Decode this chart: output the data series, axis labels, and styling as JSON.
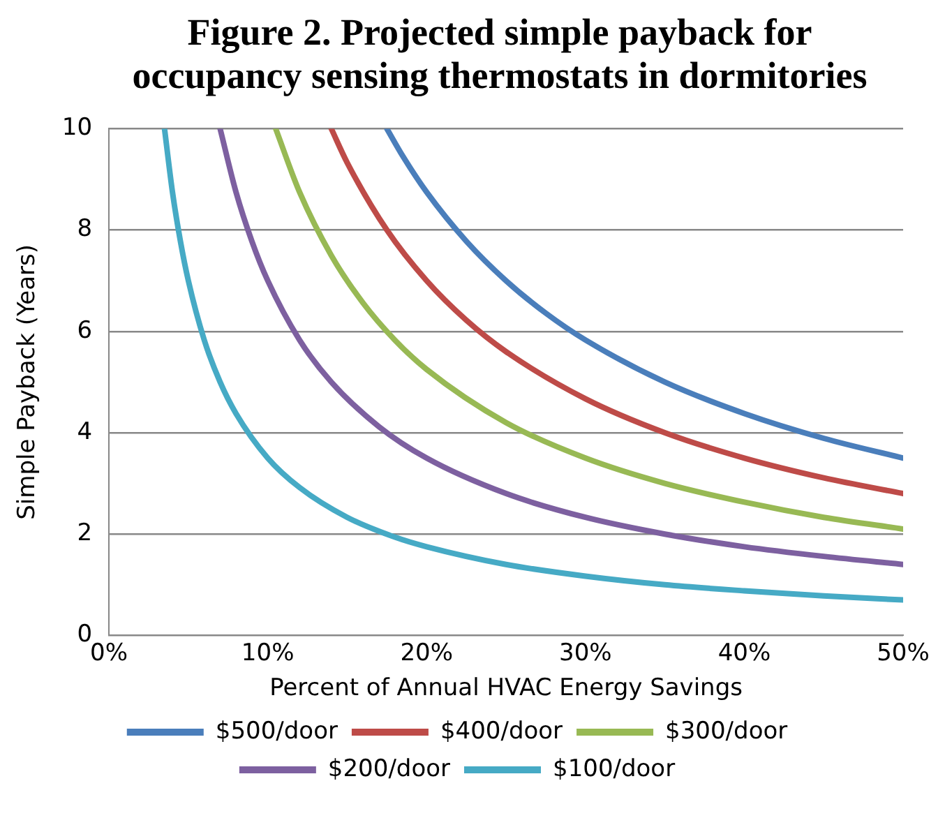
{
  "chart_data": {
    "type": "line",
    "title": "Figure 2. Projected simple payback for occupancy sensing thermostats in dormitories",
    "xlabel": "Percent of Annual HVAC Energy Savings",
    "ylabel": "Simple Payback (Years)",
    "xlim": [
      0,
      50
    ],
    "xticks": [
      {
        "value": 0,
        "label": "0%"
      },
      {
        "value": 10,
        "label": "10%"
      },
      {
        "value": 20,
        "label": "20%"
      },
      {
        "value": 30,
        "label": "30%"
      },
      {
        "value": 40,
        "label": "40%"
      },
      {
        "value": 50,
        "label": "50%"
      }
    ],
    "ylim": [
      0,
      10
    ],
    "yticks": [
      0,
      2,
      4,
      6,
      8,
      10
    ],
    "grid": "y",
    "legend": "bottom",
    "marker": "none",
    "line_style": "solid",
    "series": [
      {
        "name": "$500/door",
        "color": "#4a7ebb",
        "x": [
          17.5,
          18.5,
          20,
          22.5,
          25,
          27.5,
          30,
          35,
          40,
          45,
          50
        ],
        "values": [
          10,
          9.46,
          8.75,
          7.78,
          7.0,
          6.36,
          5.83,
          5.0,
          4.38,
          3.89,
          3.5
        ]
      },
      {
        "name": "$400/door",
        "color": "#be4b48",
        "x": [
          14,
          15,
          17.5,
          20,
          22.5,
          25,
          30,
          35,
          40,
          45,
          50
        ],
        "values": [
          10,
          9.33,
          8.0,
          7.0,
          6.22,
          5.6,
          4.67,
          4.0,
          3.5,
          3.11,
          2.8
        ]
      },
      {
        "name": "$300/door",
        "color": "#98b954",
        "x": [
          10.5,
          12,
          14,
          16,
          18,
          20,
          25,
          30,
          35,
          40,
          45,
          50
        ],
        "values": [
          10,
          8.75,
          7.5,
          6.56,
          5.83,
          5.25,
          4.2,
          3.5,
          3.0,
          2.63,
          2.33,
          2.1
        ]
      },
      {
        "name": "$200/door",
        "color": "#7d60a0",
        "x": [
          7,
          8,
          9,
          10,
          12,
          14,
          17,
          20,
          25,
          30,
          35,
          40,
          45,
          50
        ],
        "values": [
          10,
          8.75,
          7.78,
          7.0,
          5.83,
          5.0,
          4.12,
          3.5,
          2.8,
          2.33,
          2.0,
          1.75,
          1.56,
          1.4
        ]
      },
      {
        "name": "$100/door",
        "color": "#46aac5",
        "x": [
          3.5,
          4,
          4.5,
          5,
          6,
          7,
          8,
          10,
          12,
          15,
          18,
          20,
          25,
          30,
          35,
          40,
          45,
          50
        ],
        "values": [
          10,
          8.75,
          7.78,
          7.0,
          5.83,
          5.0,
          4.38,
          3.5,
          2.92,
          2.33,
          1.94,
          1.75,
          1.4,
          1.17,
          1.0,
          0.88,
          0.78,
          0.7
        ]
      }
    ]
  }
}
